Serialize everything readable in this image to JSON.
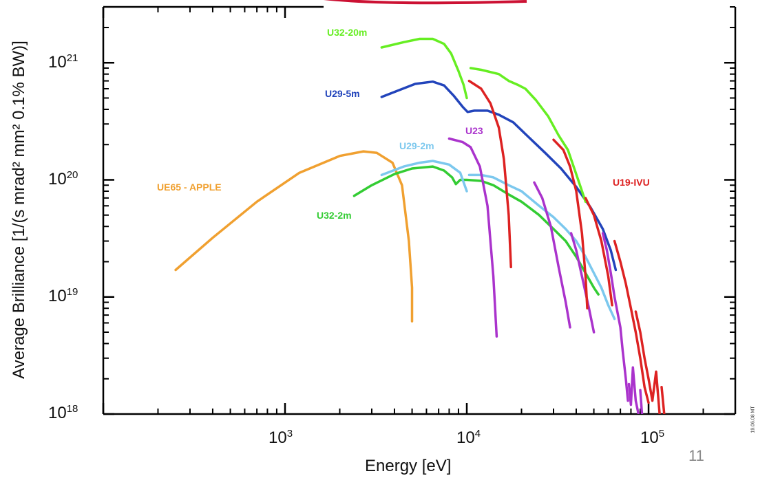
{
  "chart_data": {
    "type": "line",
    "xlabel": "Energy  [eV]",
    "ylabel": "Average Brilliance  [1/(s mrad² mm² 0.1% BW)]",
    "xscale": "log",
    "yscale": "log",
    "xlim": [
      100,
      300000
    ],
    "ylim": [
      1e+18,
      3e+21
    ],
    "x_ticks": [
      {
        "base": "10",
        "exp": "3",
        "value": 1000
      },
      {
        "base": "10",
        "exp": "4",
        "value": 10000
      },
      {
        "base": "10",
        "exp": "5",
        "value": 100000
      }
    ],
    "y_ticks": [
      {
        "base": "10",
        "exp": "18",
        "value": 1e+18
      },
      {
        "base": "10",
        "exp": "19",
        "value": 1e+19
      },
      {
        "base": "10",
        "exp": "20",
        "value": 1e+20
      },
      {
        "base": "10",
        "exp": "21",
        "value": 1e+21
      }
    ],
    "grid": false,
    "series": [
      {
        "name": "UE65 - APPLE",
        "color": "#f0a030",
        "segments": [
          [
            [
              250,
              1.7e+19
            ],
            [
              400,
              3.2e+19
            ],
            [
              700,
              6.5e+19
            ],
            [
              1200,
              1.15e+20
            ],
            [
              2000,
              1.6e+20
            ],
            [
              2700,
              1.75e+20
            ],
            [
              3200,
              1.7e+20
            ],
            [
              3900,
              1.4e+20
            ],
            [
              4400,
              9e+19
            ],
            [
              4800,
              3e+19
            ],
            [
              5000,
              1.2e+19
            ],
            [
              5000,
              6.2e+18
            ]
          ]
        ]
      },
      {
        "name": "U32-2m",
        "color": "#33cc33",
        "segments": [
          [
            [
              2400,
              7.3e+19
            ],
            [
              3000,
              9e+19
            ],
            [
              4000,
              1.12e+20
            ],
            [
              5000,
              1.25e+20
            ],
            [
              6500,
              1.3e+20
            ],
            [
              7500,
              1.2e+20
            ],
            [
              8300,
              1.05e+20
            ],
            [
              8700,
              9.2e+19
            ],
            [
              9200,
              1e+20
            ],
            [
              10000,
              1e+20
            ],
            [
              12000,
              9.8e+19
            ],
            [
              14000,
              9e+19
            ],
            [
              17000,
              7.5e+19
            ],
            [
              20000,
              6.5e+19
            ],
            [
              25000,
              5e+19
            ],
            [
              30000,
              3.8e+19
            ],
            [
              35000,
              3e+19
            ],
            [
              40000,
              2.2e+19
            ],
            [
              45000,
              1.6e+19
            ],
            [
              50000,
              1.2e+19
            ],
            [
              53000,
              1.05e+19
            ]
          ]
        ]
      },
      {
        "name": "U29-2m",
        "color": "#7cc8ee",
        "segments": [
          [
            [
              3400,
              1.1e+20
            ],
            [
              4500,
              1.3e+20
            ],
            [
              5500,
              1.4e+20
            ],
            [
              6500,
              1.45e+20
            ],
            [
              8000,
              1.35e+20
            ],
            [
              9200,
              1.15e+20
            ],
            [
              10000,
              8e+19
            ]
          ],
          [
            [
              10300,
              1.1e+20
            ],
            [
              12000,
              1.1e+20
            ],
            [
              14000,
              1.05e+20
            ],
            [
              17000,
              9e+19
            ],
            [
              20000,
              8e+19
            ],
            [
              25000,
              6e+19
            ],
            [
              30000,
              4.8e+19
            ],
            [
              35000,
              3.8e+19
            ],
            [
              40000,
              3e+19
            ],
            [
              45000,
              2.2e+19
            ],
            [
              50000,
              1.6e+19
            ],
            [
              55000,
              1.2e+19
            ],
            [
              60000,
              8.5e+18
            ],
            [
              65000,
              6.5e+18
            ]
          ]
        ]
      },
      {
        "name": "U29-5m",
        "color": "#2244bb",
        "segments": [
          [
            [
              3400,
              5.1e+20
            ],
            [
              4200,
              5.8e+20
            ],
            [
              5200,
              6.6e+20
            ],
            [
              6500,
              6.9e+20
            ],
            [
              7500,
              6.4e+20
            ],
            [
              8500,
              5.2e+20
            ],
            [
              9500,
              4.2e+20
            ],
            [
              10100,
              3.8e+20
            ],
            [
              11000,
              3.9e+20
            ],
            [
              13000,
              3.9e+20
            ],
            [
              15000,
              3.6e+20
            ],
            [
              18000,
              3.1e+20
            ],
            [
              22000,
              2.3e+20
            ],
            [
              27000,
              1.7e+20
            ],
            [
              33000,
              1.25e+20
            ],
            [
              40000,
              8.7e+19
            ],
            [
              48000,
              5.8e+19
            ],
            [
              56000,
              3.8e+19
            ],
            [
              62000,
              2.5e+19
            ],
            [
              66000,
              1.7e+19
            ]
          ]
        ]
      },
      {
        "name": "U32-20m",
        "color": "#66ee22",
        "segments": [
          [
            [
              3400,
              1.35e+21
            ],
            [
              4500,
              1.5e+21
            ],
            [
              5500,
              1.6e+21
            ],
            [
              6500,
              1.6e+21
            ],
            [
              7500,
              1.45e+21
            ],
            [
              8200,
              1.2e+21
            ],
            [
              9000,
              8.5e+20
            ],
            [
              9600,
              6.5e+20
            ],
            [
              10000,
              5e+20
            ]
          ],
          [
            [
              10500,
              9e+20
            ],
            [
              12000,
              8.7e+20
            ],
            [
              15000,
              8e+20
            ],
            [
              17000,
              7e+20
            ],
            [
              19000,
              6.5e+20
            ],
            [
              21000,
              6e+20
            ],
            [
              24000,
              4.8e+20
            ],
            [
              28000,
              3.5e+20
            ],
            [
              32000,
              2.4e+20
            ],
            [
              36000,
              1.8e+20
            ],
            [
              41000,
              1e+20
            ],
            [
              45000,
              6.5e+19
            ]
          ]
        ]
      },
      {
        "name": "U23",
        "color": "#aa33cc",
        "segments": [
          [
            [
              8000,
              2.25e+20
            ],
            [
              9500,
              2.1e+20
            ],
            [
              10500,
              1.9e+20
            ],
            [
              11800,
              1.3e+20
            ],
            [
              13000,
              6e+19
            ],
            [
              14000,
              1.5e+19
            ],
            [
              14600,
              4.6e+18
            ]
          ],
          [
            [
              23500,
              9.5e+19
            ],
            [
              26000,
              7e+19
            ],
            [
              29000,
              4e+19
            ],
            [
              32000,
              1.8e+19
            ],
            [
              35000,
              9e+18
            ],
            [
              37000,
              5.5e+18
            ]
          ],
          [
            [
              37500,
              3.5e+19
            ],
            [
              40000,
              2.5e+19
            ],
            [
              43000,
              1.5e+19
            ],
            [
              47000,
              8e+18
            ],
            [
              50000,
              5e+18
            ]
          ],
          [
            [
              56000,
              3.5e+19
            ],
            [
              59000,
              2.5e+19
            ],
            [
              62000,
              1.6e+19
            ],
            [
              65000,
              1e+19
            ],
            [
              70000,
              5.5e+18
            ],
            [
              72000,
              3.5e+18
            ],
            [
              75000,
              2e+18
            ],
            [
              77000,
              1.3e+18
            ]
          ],
          [
            [
              78000,
              1.8e+18
            ],
            [
              80000,
              1.2e+18
            ],
            [
              82000,
              2.5e+18
            ],
            [
              85000,
              1.3e+18
            ],
            [
              88000,
              1e+18
            ]
          ],
          [
            [
              90000,
              1.6e+18
            ],
            [
              92000,
              1e+18
            ]
          ]
        ]
      },
      {
        "name": "U19-IVU",
        "color": "#dd2222",
        "segments": [
          [
            [
              10300,
              7e+20
            ],
            [
              12000,
              6e+20
            ],
            [
              13500,
              4.5e+20
            ],
            [
              15000,
              2.8e+20
            ],
            [
              16000,
              1.5e+20
            ],
            [
              17000,
              5e+19
            ],
            [
              17500,
              1.8e+19
            ]
          ],
          [
            [
              30000,
              2.2e+20
            ],
            [
              34000,
              1.8e+20
            ],
            [
              37000,
              1.3e+20
            ],
            [
              40000,
              8e+19
            ],
            [
              43000,
              3.5e+19
            ],
            [
              45000,
              1.5e+19
            ],
            [
              46000,
              8e+18
            ]
          ],
          [
            [
              45000,
              7e+19
            ],
            [
              50000,
              5e+19
            ],
            [
              55000,
              3e+19
            ],
            [
              60000,
              1.5e+19
            ],
            [
              63000,
              8.5e+18
            ]
          ],
          [
            [
              65000,
              3e+19
            ],
            [
              70000,
              2e+19
            ],
            [
              75000,
              1.3e+19
            ],
            [
              80000,
              8e+18
            ],
            [
              85000,
              5e+18
            ],
            [
              90000,
              3e+18
            ],
            [
              95000,
              1.7e+18
            ],
            [
              100000,
              1.25e+18
            ]
          ],
          [
            [
              85000,
              7.5e+18
            ],
            [
              90000,
              5e+18
            ],
            [
              95000,
              3e+18
            ],
            [
              100000,
              2e+18
            ],
            [
              105000,
              1.3e+18
            ],
            [
              110000,
              2.3e+18
            ],
            [
              115000,
              1e+18
            ]
          ],
          [
            [
              118000,
              1.7e+18
            ],
            [
              122000,
              1e+18
            ]
          ]
        ]
      }
    ],
    "annotations": [
      {
        "text": "U32-20m",
        "color": "#66ee22"
      },
      {
        "text": "U29-5m",
        "color": "#2244bb"
      },
      {
        "text": "U23",
        "color": "#aa33cc"
      },
      {
        "text": "U29-2m",
        "color": "#7cc8ee"
      },
      {
        "text": "UE65 - APPLE",
        "color": "#f0a030"
      },
      {
        "text": "U32-2m",
        "color": "#33cc33"
      },
      {
        "text": "U19-IVU",
        "color": "#dd2222"
      }
    ],
    "top_fragment_color": "#cc1133"
  },
  "slide_number": "11",
  "stamp": "19.06.08 MT"
}
